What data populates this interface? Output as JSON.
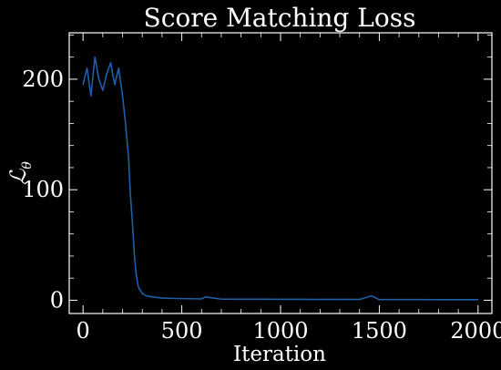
{
  "colors": {
    "background": "#000000",
    "axes": "#ffffff",
    "series": "#1f5fa8",
    "text": "#ffffff"
  },
  "chart_data": {
    "type": "line",
    "title": "Score Matching Loss",
    "xlabel": "Iteration",
    "ylabel": "ℒ_θ",
    "ylabel_main": "ℒ",
    "ylabel_sub": "θ",
    "xlim": [
      -70,
      2070
    ],
    "ylim": [
      -12,
      242
    ],
    "xticks": [
      0,
      500,
      1000,
      1500,
      2000
    ],
    "xtick_labels": [
      "0",
      "500",
      "1000",
      "1500",
      "2000"
    ],
    "yticks": [
      0,
      100,
      200
    ],
    "ytick_labels": [
      "0",
      "100",
      "200"
    ],
    "grid": false,
    "legend": "none",
    "series": [
      {
        "x": [
          0,
          20,
          40,
          60,
          80,
          100,
          120,
          140,
          160,
          180,
          200,
          215,
          230,
          240,
          250,
          260,
          270,
          280,
          300,
          320,
          350,
          400,
          500,
          600,
          620,
          700,
          800,
          900,
          1000,
          1100,
          1200,
          1300,
          1400,
          1460,
          1500,
          1600,
          1700,
          1800,
          1900,
          2000
        ],
        "y": [
          195,
          210,
          185,
          220,
          200,
          190,
          205,
          215,
          195,
          210,
          185,
          160,
          130,
          95,
          70,
          40,
          22,
          12,
          6,
          4,
          3,
          2,
          1.5,
          1.2,
          3,
          1,
          0.9,
          0.9,
          0.8,
          0.8,
          0.7,
          0.7,
          0.7,
          4,
          0.6,
          0.6,
          0.6,
          0.5,
          0.5,
          0.5
        ]
      }
    ]
  }
}
